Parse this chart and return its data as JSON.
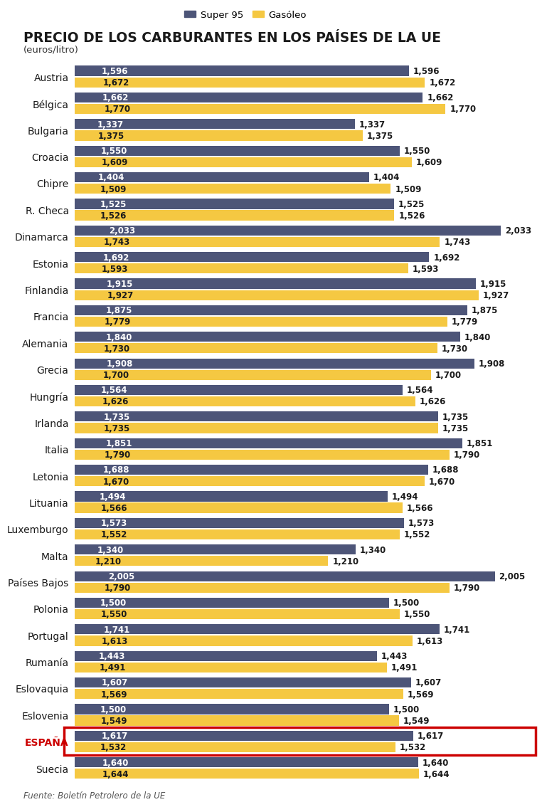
{
  "title": "PRECIO DE LOS CARBURANTES EN LOS PAÍSES DE LA UE",
  "subtitle": "(euros/litro)",
  "source": "Fuente: Boletín Petrolero de la UE",
  "legend_super95": "Super 95",
  "legend_gasoleo": "Gasóleo",
  "color_super95": "#4d5578",
  "color_gasoleo": "#f5c842",
  "color_background": "#ffffff",
  "color_highlight_border": "#cc0000",
  "color_title": "#1a1a1a",
  "countries": [
    "Austria",
    "Bélgica",
    "Bulgaria",
    "Croacia",
    "Chipre",
    "R. Checa",
    "Dinamarca",
    "Estonia",
    "Finlandia",
    "Francia",
    "Alemania",
    "Grecia",
    "Hungría",
    "Irlanda",
    "Italia",
    "Letonia",
    "Lituania",
    "Luxemburgo",
    "Malta",
    "Países Bajos",
    "Polonia",
    "Portugal",
    "Rumanía",
    "Eslovaquia",
    "Eslovenia",
    "ESPAÑA",
    "Suecia"
  ],
  "super95": [
    1.596,
    1.662,
    1.337,
    1.55,
    1.404,
    1.525,
    2.033,
    1.692,
    1.915,
    1.875,
    1.84,
    1.908,
    1.564,
    1.735,
    1.851,
    1.688,
    1.494,
    1.573,
    1.34,
    2.005,
    1.5,
    1.741,
    1.443,
    1.607,
    1.5,
    1.617,
    1.64
  ],
  "gasoleo": [
    1.672,
    1.77,
    1.375,
    1.609,
    1.509,
    1.526,
    1.743,
    1.593,
    1.927,
    1.779,
    1.73,
    1.7,
    1.626,
    1.735,
    1.79,
    1.67,
    1.566,
    1.552,
    1.21,
    1.79,
    1.55,
    1.613,
    1.491,
    1.569,
    1.549,
    1.532,
    1.644
  ],
  "highlight_country": "ESPAÑA",
  "bar_height": 0.38,
  "bar_gap": 0.05,
  "xlim_max": 2.2,
  "xlim_min": 0.0
}
